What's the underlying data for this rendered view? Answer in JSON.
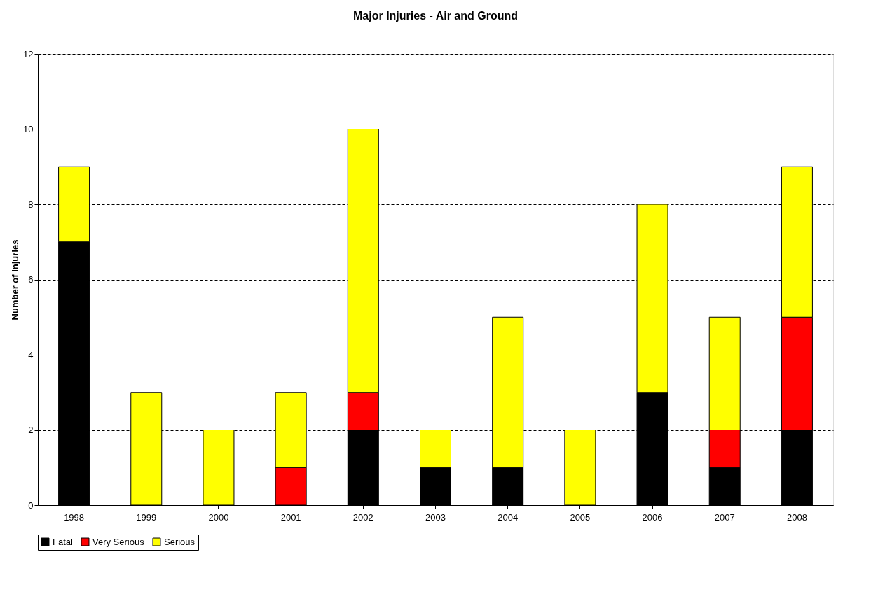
{
  "chart_data": {
    "type": "bar",
    "title": "Major Injuries - Air and Ground",
    "ylabel": "Number of Injuries",
    "categories": [
      "1998",
      "1999",
      "2000",
      "2001",
      "2002",
      "2003",
      "2004",
      "2005",
      "2006",
      "2007",
      "2008"
    ],
    "series": [
      {
        "name": "Fatal",
        "color": "#000000",
        "values": [
          7,
          0,
          0,
          0,
          2,
          1,
          1,
          0,
          3,
          1,
          2
        ]
      },
      {
        "name": "Very Serious",
        "color": "#ff0000",
        "values": [
          0,
          0,
          0,
          1,
          1,
          0,
          0,
          0,
          0,
          1,
          3
        ]
      },
      {
        "name": "Serious",
        "color": "#ffff00",
        "values": [
          2,
          3,
          2,
          2,
          7,
          1,
          4,
          2,
          5,
          3,
          4
        ]
      }
    ],
    "stacked": true,
    "ylim": [
      0,
      12
    ],
    "yticks": [
      0,
      2,
      4,
      6,
      8,
      10,
      12
    ],
    "grid": "y",
    "legend": "bottom"
  }
}
